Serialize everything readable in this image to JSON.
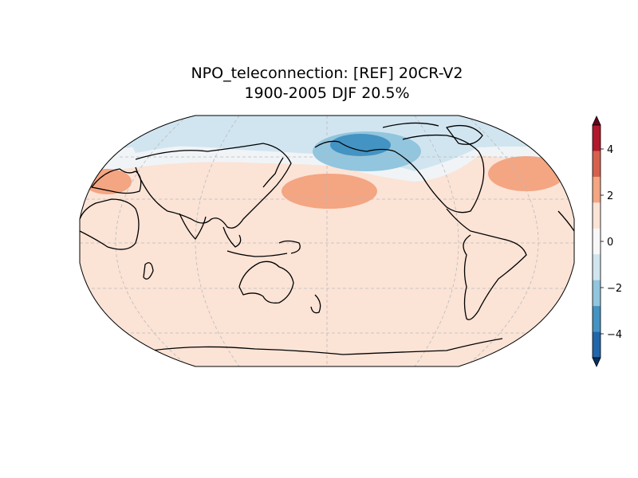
{
  "title": {
    "line1": "NPO_teleconnection: [REF] 20CR-V2",
    "line2": "1900-2005 DJF 20.5%"
  },
  "colorbar": {
    "ticks": [
      "4",
      "2",
      "0",
      "−2",
      "−4"
    ],
    "levels": [
      {
        "color": "#67001f"
      },
      {
        "color": "#b2182b"
      },
      {
        "color": "#d6604d"
      },
      {
        "color": "#f4a582"
      },
      {
        "color": "#fbe3d6"
      },
      {
        "color": "#f7f7f7"
      },
      {
        "color": "#d1e5f0"
      },
      {
        "color": "#92c5de"
      },
      {
        "color": "#4393c3"
      },
      {
        "color": "#2166ac"
      },
      {
        "color": "#053061"
      }
    ]
  },
  "map": {
    "projection": "Robinson",
    "central_longitude": 180,
    "gridlines": "dashed",
    "coastlines": true
  }
}
